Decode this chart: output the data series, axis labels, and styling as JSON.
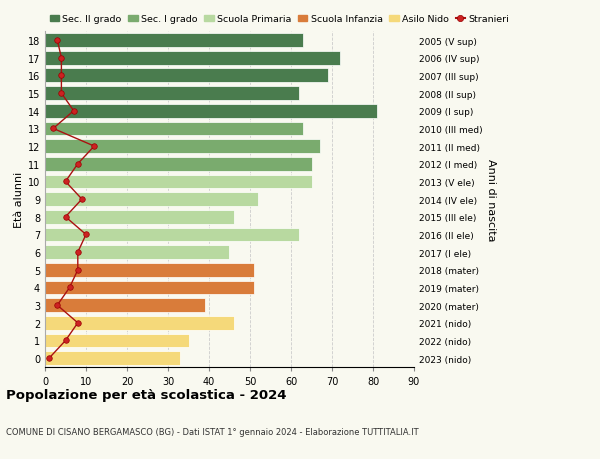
{
  "ages": [
    18,
    17,
    16,
    15,
    14,
    13,
    12,
    11,
    10,
    9,
    8,
    7,
    6,
    5,
    4,
    3,
    2,
    1,
    0
  ],
  "bar_values": [
    63,
    72,
    69,
    62,
    81,
    63,
    67,
    65,
    65,
    52,
    46,
    62,
    45,
    51,
    51,
    39,
    46,
    35,
    33
  ],
  "right_labels": [
    "2005 (V sup)",
    "2006 (IV sup)",
    "2007 (III sup)",
    "2008 (II sup)",
    "2009 (I sup)",
    "2010 (III med)",
    "2011 (II med)",
    "2012 (I med)",
    "2013 (V ele)",
    "2014 (IV ele)",
    "2015 (III ele)",
    "2016 (II ele)",
    "2017 (I ele)",
    "2018 (mater)",
    "2019 (mater)",
    "2020 (mater)",
    "2021 (nido)",
    "2022 (nido)",
    "2023 (nido)"
  ],
  "bar_colors": [
    "#4a7c4e",
    "#4a7c4e",
    "#4a7c4e",
    "#4a7c4e",
    "#4a7c4e",
    "#7aab6e",
    "#7aab6e",
    "#7aab6e",
    "#b8d9a0",
    "#b8d9a0",
    "#b8d9a0",
    "#b8d9a0",
    "#b8d9a0",
    "#d97c3a",
    "#d97c3a",
    "#d97c3a",
    "#f5d97a",
    "#f5d97a",
    "#f5d97a"
  ],
  "stranieri_values": [
    3,
    4,
    4,
    4,
    7,
    2,
    12,
    8,
    5,
    9,
    5,
    10,
    8,
    8,
    6,
    3,
    8,
    5,
    1
  ],
  "legend_labels": [
    "Sec. II grado",
    "Sec. I grado",
    "Scuola Primaria",
    "Scuola Infanzia",
    "Asilo Nido",
    "Stranieri"
  ],
  "legend_colors": [
    "#4a7c4e",
    "#7aab6e",
    "#b8d9a0",
    "#d97c3a",
    "#f5d97a",
    "#aa1111"
  ],
  "title": "Popolazione per età scolastica - 2024",
  "subtitle": "COMUNE DI CISANO BERGAMASCO (BG) - Dati ISTAT 1° gennaio 2024 - Elaborazione TUTTITALIA.IT",
  "ylabel": "Età alunni",
  "right_ylabel": "Anni di nascita",
  "xlim": [
    0,
    90
  ],
  "xticks": [
    0,
    10,
    20,
    30,
    40,
    50,
    60,
    70,
    80,
    90
  ],
  "bg_color": "#f9f9f0",
  "grid_color": "#cccccc"
}
